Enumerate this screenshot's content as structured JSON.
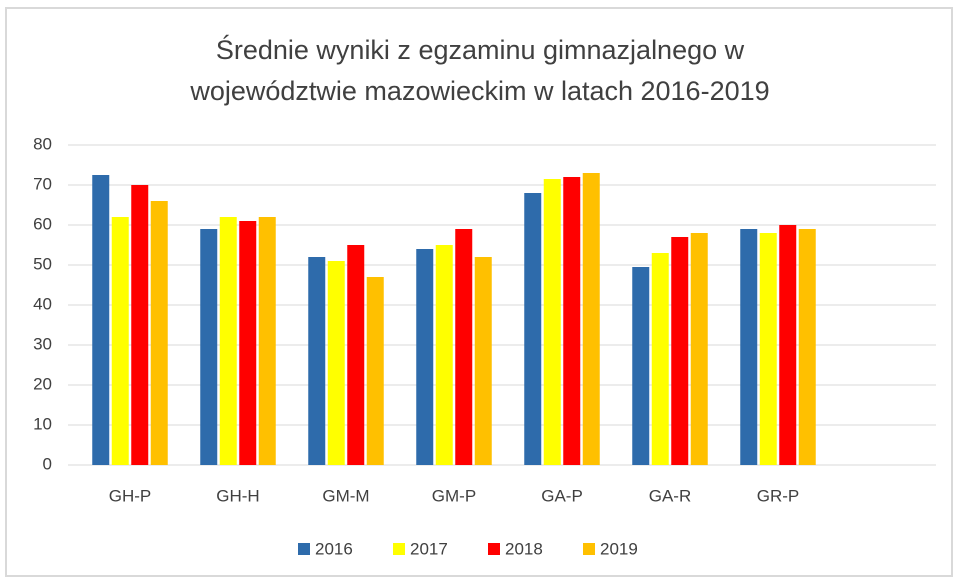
{
  "chart_data": {
    "type": "bar",
    "title": [
      "Średnie wyniki z egzaminu gimnazjalnego w",
      "województwie mazowieckim w latach 2016-2019"
    ],
    "categories": [
      "GH-P",
      "GH-H",
      "GM-M",
      "GM-P",
      "GA-P",
      "GA-R",
      "GR-P",
      null
    ],
    "series": [
      {
        "name": "2016",
        "color": "#2e6bab",
        "values": [
          72.5,
          59,
          52,
          54,
          68,
          49.5,
          59,
          null
        ]
      },
      {
        "name": "2017",
        "color": "#ffff00",
        "values": [
          62,
          62,
          51,
          55,
          71.5,
          53,
          58,
          null
        ]
      },
      {
        "name": "2018",
        "color": "#ff0000",
        "values": [
          70,
          61,
          55,
          59,
          72,
          57,
          60,
          null
        ]
      },
      {
        "name": "2019",
        "color": "#ffc000",
        "values": [
          66,
          62,
          47,
          52,
          73,
          58,
          59,
          null
        ]
      }
    ],
    "ylim": [
      0,
      80
    ],
    "yticks": [
      0,
      10,
      20,
      30,
      40,
      50,
      60,
      70,
      80
    ],
    "grid": true,
    "legend": "bottom"
  }
}
